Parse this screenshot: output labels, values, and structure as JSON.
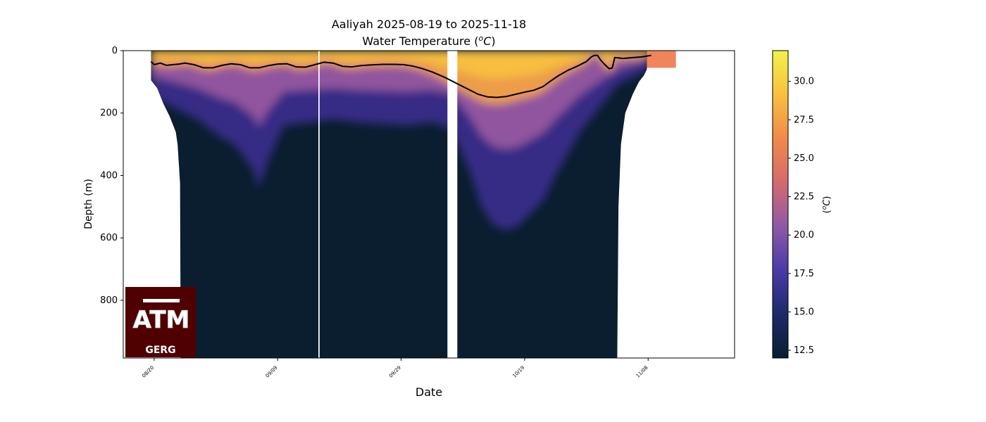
{
  "chart_data": {
    "type": "heatmap",
    "title_line1": "Aaliyah 2025-08-19 to 2025-11-18",
    "title_line2_prefix": "Water Temperature (",
    "title_line2_sup": "o",
    "title_line2_unit": "C",
    "title_line2_suffix": ")",
    "xlabel": "Date",
    "ylabel": "Depth (m)",
    "x_start_date": "2025-08-15",
    "x_end_date": "2025-11-23",
    "x_ticks": [
      {
        "label": "08/20",
        "day": 5
      },
      {
        "label": "09/09",
        "day": 25
      },
      {
        "label": "09/29",
        "day": 45
      },
      {
        "label": "10/19",
        "day": 65
      },
      {
        "label": "11/08",
        "day": 85
      }
    ],
    "y_ticks": [
      0,
      200,
      400,
      600,
      800
    ],
    "ylim": [
      985,
      0
    ],
    "colorbar": {
      "label_prefix": "(",
      "label_sup": "o",
      "label_unit": "C",
      "label_suffix": ")",
      "range": [
        12,
        32
      ],
      "ticks": [
        "12.5",
        "15.0",
        "17.5",
        "20.0",
        "22.5",
        "25.0",
        "27.5",
        "30.0"
      ],
      "colormap_stops": [
        "#0a1e30",
        "#1c2a6a",
        "#4a3aa8",
        "#8e5aa6",
        "#d46a6e",
        "#f08a4a",
        "#f8c040",
        "#f2f24a"
      ]
    },
    "data_gaps_days": [
      [
        31.6,
        31.8
      ],
      [
        52.5,
        54.1
      ]
    ],
    "profile_max_depth": [
      [
        4.5,
        95
      ],
      [
        5.5,
        120
      ],
      [
        6.5,
        170
      ],
      [
        7.5,
        210
      ],
      [
        8.5,
        260
      ],
      [
        8.8,
        300
      ],
      [
        9.2,
        425
      ],
      [
        9.3,
        985
      ],
      [
        80,
        985
      ],
      [
        80.2,
        500
      ],
      [
        80.6,
        300
      ],
      [
        81.3,
        200
      ],
      [
        82.5,
        140
      ],
      [
        83.5,
        100
      ],
      [
        84.3,
        80
      ],
      [
        84.8,
        60
      ]
    ],
    "surface_extension_days": [
      84.8,
      89.5
    ],
    "surface_extension_depth": 55,
    "mixed_layer_depth": [
      [
        4.5,
        35
      ],
      [
        5.0,
        45
      ],
      [
        6.0,
        40
      ],
      [
        7.0,
        47
      ],
      [
        9.0,
        43
      ],
      [
        10.0,
        40
      ],
      [
        11.5,
        45
      ],
      [
        13.0,
        55
      ],
      [
        14.5,
        55
      ],
      [
        16.0,
        47
      ],
      [
        17.5,
        42
      ],
      [
        19.0,
        45
      ],
      [
        20.5,
        55
      ],
      [
        22.0,
        55
      ],
      [
        23.5,
        48
      ],
      [
        25.0,
        43
      ],
      [
        26.5,
        42
      ],
      [
        28.0,
        52
      ],
      [
        29.5,
        53
      ],
      [
        31.0,
        45
      ],
      [
        32.5,
        37
      ],
      [
        34.0,
        40
      ],
      [
        35.5,
        50
      ],
      [
        37.0,
        52
      ],
      [
        38.5,
        48
      ],
      [
        40.0,
        46
      ],
      [
        42.0,
        44
      ],
      [
        44.0,
        44
      ],
      [
        45.5,
        45
      ],
      [
        47.0,
        50
      ],
      [
        48.5,
        58
      ],
      [
        50.0,
        68
      ],
      [
        52.0,
        85
      ],
      [
        54.0,
        105
      ],
      [
        56.0,
        125
      ],
      [
        57.5,
        140
      ],
      [
        59.0,
        148
      ],
      [
        60.5,
        150
      ],
      [
        62.0,
        147
      ],
      [
        63.5,
        140
      ],
      [
        65.0,
        133
      ],
      [
        66.5,
        127
      ],
      [
        68.0,
        115
      ],
      [
        69.0,
        100
      ],
      [
        70.5,
        80
      ],
      [
        72.0,
        63
      ],
      [
        73.5,
        50
      ],
      [
        75.0,
        35
      ],
      [
        75.8,
        20
      ],
      [
        76.3,
        15
      ],
      [
        76.8,
        15
      ],
      [
        77.3,
        30
      ],
      [
        78.0,
        45
      ],
      [
        78.7,
        58
      ],
      [
        79.2,
        55
      ],
      [
        79.6,
        22
      ],
      [
        81.0,
        25
      ],
      [
        82.0,
        23
      ],
      [
        84.0,
        20
      ],
      [
        85.5,
        15
      ]
    ],
    "warm_layer_depth_profile": [
      [
        4.5,
        150
      ],
      [
        8,
        180
      ],
      [
        12,
        220
      ],
      [
        16,
        280
      ],
      [
        18,
        300
      ],
      [
        21,
        380
      ],
      [
        22,
        440
      ],
      [
        23.5,
        350
      ],
      [
        26,
        240
      ],
      [
        30,
        230
      ],
      [
        34,
        220
      ],
      [
        38,
        230
      ],
      [
        42,
        235
      ],
      [
        46,
        240
      ],
      [
        50,
        230
      ],
      [
        53,
        250
      ],
      [
        56,
        380
      ],
      [
        58,
        500
      ],
      [
        60,
        560
      ],
      [
        62,
        575
      ],
      [
        64,
        560
      ],
      [
        66,
        520
      ],
      [
        68,
        480
      ],
      [
        70,
        400
      ],
      [
        72,
        330
      ],
      [
        74,
        260
      ],
      [
        76,
        210
      ],
      [
        78,
        160
      ],
      [
        80,
        110
      ],
      [
        85,
        60
      ]
    ],
    "logo": {
      "letters": "ATM",
      "subtext": "GERG"
    }
  }
}
